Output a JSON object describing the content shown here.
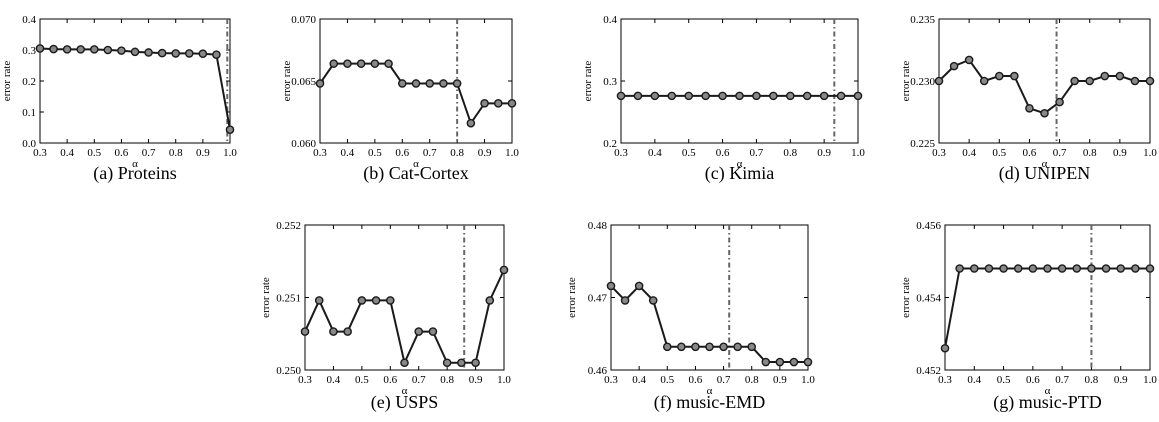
{
  "chart_data": [
    {
      "type": "line",
      "caption": "(a) Proteins",
      "xlabel": "α",
      "ylabel": "error rate",
      "xlim": [
        0.3,
        1.0
      ],
      "ylim": [
        0.0,
        0.4
      ],
      "xticks": [
        "0.3",
        "0.4",
        "0.5",
        "0.6",
        "0.7",
        "0.8",
        "0.9",
        "1.0"
      ],
      "yticks": [
        "0.0",
        "0.1",
        "0.2",
        "0.3",
        "0.4"
      ],
      "x": [
        0.3,
        0.35,
        0.4,
        0.45,
        0.5,
        0.55,
        0.6,
        0.65,
        0.7,
        0.75,
        0.8,
        0.85,
        0.9,
        0.95,
        1.0
      ],
      "y": [
        0.305,
        0.303,
        0.302,
        0.302,
        0.302,
        0.3,
        0.298,
        0.294,
        0.292,
        0.29,
        0.289,
        0.289,
        0.288,
        0.285,
        0.043
      ],
      "vline": 0.99
    },
    {
      "type": "line",
      "caption": "(b) Cat-Cortex",
      "xlabel": "α",
      "ylabel": "error rate",
      "xlim": [
        0.3,
        1.0
      ],
      "ylim": [
        0.06,
        0.07
      ],
      "xticks": [
        "0.3",
        "0.4",
        "0.5",
        "0.6",
        "0.7",
        "0.8",
        "0.9",
        "1.0"
      ],
      "yticks": [
        "0.060",
        "0.065",
        "0.070"
      ],
      "x": [
        0.3,
        0.35,
        0.4,
        0.45,
        0.5,
        0.55,
        0.6,
        0.65,
        0.7,
        0.75,
        0.8,
        0.85,
        0.9,
        0.95,
        1.0
      ],
      "y": [
        0.0648,
        0.0664,
        0.0664,
        0.0664,
        0.0664,
        0.0664,
        0.0648,
        0.0648,
        0.0648,
        0.0648,
        0.0648,
        0.0616,
        0.0632,
        0.0632,
        0.0632
      ],
      "vline": 0.8
    },
    {
      "type": "line",
      "caption": "(c) Kimia",
      "xlabel": "α",
      "ylabel": "error rate",
      "xlim": [
        0.3,
        1.0
      ],
      "ylim": [
        0.2,
        0.4
      ],
      "xticks": [
        "0.3",
        "0.4",
        "0.5",
        "0.6",
        "0.7",
        "0.8",
        "0.9",
        "1.0"
      ],
      "yticks": [
        "0.2",
        "0.3",
        "0.4"
      ],
      "x": [
        0.3,
        0.35,
        0.4,
        0.45,
        0.5,
        0.55,
        0.6,
        0.65,
        0.7,
        0.75,
        0.8,
        0.85,
        0.9,
        0.95,
        1.0
      ],
      "y": [
        0.276,
        0.276,
        0.276,
        0.276,
        0.276,
        0.276,
        0.276,
        0.276,
        0.276,
        0.276,
        0.276,
        0.276,
        0.276,
        0.276,
        0.276
      ],
      "vline": 0.93
    },
    {
      "type": "line",
      "caption": "(d) UNIPEN",
      "xlabel": "α",
      "ylabel": "error rate",
      "xlim": [
        0.3,
        1.0
      ],
      "ylim": [
        0.225,
        0.235
      ],
      "xticks": [
        "0.3",
        "0.4",
        "0.5",
        "0.6",
        "0.7",
        "0.8",
        "0.9",
        "1.0"
      ],
      "yticks": [
        "0.225",
        "0.230",
        "0.235"
      ],
      "x": [
        0.3,
        0.35,
        0.4,
        0.45,
        0.5,
        0.55,
        0.6,
        0.65,
        0.7,
        0.75,
        0.8,
        0.85,
        0.9,
        0.95,
        1.0
      ],
      "y": [
        0.23,
        0.2312,
        0.2317,
        0.23,
        0.2304,
        0.2304,
        0.2278,
        0.2274,
        0.2283,
        0.23,
        0.23,
        0.2304,
        0.2304,
        0.23,
        0.23
      ],
      "vline": 0.69
    },
    {
      "type": "line",
      "caption": "(e) USPS",
      "xlabel": "α",
      "ylabel": "error rate",
      "xlim": [
        0.3,
        1.0
      ],
      "ylim": [
        0.25,
        0.252
      ],
      "xticks": [
        "0.3",
        "0.4",
        "0.5",
        "0.6",
        "0.7",
        "0.8",
        "0.9",
        "1.0"
      ],
      "yticks": [
        "0.250",
        "0.251",
        "0.252"
      ],
      "x": [
        0.3,
        0.35,
        0.4,
        0.45,
        0.5,
        0.55,
        0.6,
        0.65,
        0.7,
        0.75,
        0.8,
        0.85,
        0.9,
        0.95,
        1.0
      ],
      "y": [
        0.25053,
        0.25096,
        0.25053,
        0.25053,
        0.25096,
        0.25096,
        0.25096,
        0.2501,
        0.25053,
        0.25053,
        0.2501,
        0.2501,
        0.2501,
        0.25096,
        0.25138
      ],
      "vline": 0.86
    },
    {
      "type": "line",
      "caption": "(f) music-EMD",
      "xlabel": "α",
      "ylabel": "error rate",
      "xlim": [
        0.3,
        1.0
      ],
      "ylim": [
        0.46,
        0.48
      ],
      "xticks": [
        "0.3",
        "0.4",
        "0.5",
        "0.6",
        "0.7",
        "0.8",
        "0.9",
        "1.0"
      ],
      "yticks": [
        "0.46",
        "0.47",
        "0.48"
      ],
      "x": [
        0.3,
        0.35,
        0.4,
        0.45,
        0.5,
        0.55,
        0.6,
        0.65,
        0.7,
        0.75,
        0.8,
        0.85,
        0.9,
        0.95,
        1.0
      ],
      "y": [
        0.4716,
        0.4696,
        0.4716,
        0.4696,
        0.4632,
        0.4632,
        0.4632,
        0.4632,
        0.4632,
        0.4632,
        0.4632,
        0.4611,
        0.4611,
        0.4611,
        0.4611
      ],
      "vline": 0.72
    },
    {
      "type": "line",
      "caption": "(g) music-PTD",
      "xlabel": "α",
      "ylabel": "error rate",
      "xlim": [
        0.3,
        1.0
      ],
      "ylim": [
        0.452,
        0.456
      ],
      "xticks": [
        "0.3",
        "0.4",
        "0.5",
        "0.6",
        "0.7",
        "0.8",
        "0.9",
        "1.0"
      ],
      "yticks": [
        "0.452",
        "0.454",
        "0.456"
      ],
      "x": [
        0.3,
        0.35,
        0.4,
        0.45,
        0.5,
        0.55,
        0.6,
        0.65,
        0.7,
        0.75,
        0.8,
        0.85,
        0.9,
        0.95,
        1.0
      ],
      "y": [
        0.4526,
        0.4548,
        0.4548,
        0.4548,
        0.4548,
        0.4548,
        0.4548,
        0.4548,
        0.4548,
        0.4548,
        0.4548,
        0.4548,
        0.4548,
        0.4548,
        0.4548
      ],
      "vline": 0.8
    }
  ],
  "colors": {
    "line": "#1a1a1a",
    "marker_fill": "#888888",
    "vline": "#666666",
    "axis": "#000000"
  }
}
